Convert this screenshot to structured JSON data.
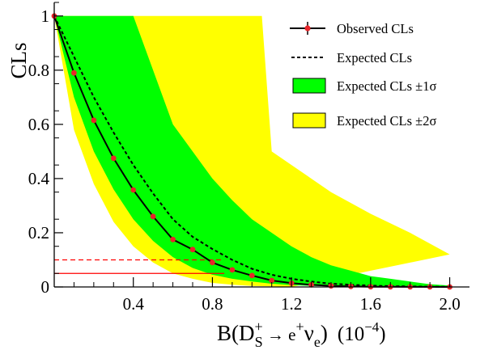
{
  "chart_data": {
    "type": "line",
    "ylabel": "CLs",
    "xlabel": {
      "B": "B(D",
      "sup": "+",
      "sub": "S",
      "arrow": " → e",
      "esup": "+",
      "nu": "ν",
      "nusub": "e",
      "close": ")",
      "unit": "(10",
      "unitexp": "−4",
      "unitclose": ")"
    },
    "xlim": [
      0.0,
      2.1
    ],
    "ylim": [
      0.0,
      1.05
    ],
    "xticks": [
      {
        "v": 0.4,
        "label": "0.4"
      },
      {
        "v": 0.8,
        "label": "0.8"
      },
      {
        "v": 1.2,
        "label": "1.2"
      },
      {
        "v": 1.6,
        "label": "1.6"
      },
      {
        "v": 2.0,
        "label": "2.0"
      }
    ],
    "yticks": [
      {
        "v": 0.0,
        "label": "0"
      },
      {
        "v": 0.2,
        "label": "0.2"
      },
      {
        "v": 0.4,
        "label": "0.4"
      },
      {
        "v": 0.6,
        "label": "0.6"
      },
      {
        "v": 0.8,
        "label": "0.8"
      },
      {
        "v": 1.0,
        "label": "1"
      }
    ],
    "observed": {
      "name": "Observed CLs",
      "color": "#000000",
      "marker_color": "#e8252a",
      "x": [
        0.0,
        0.1,
        0.2,
        0.3,
        0.4,
        0.5,
        0.6,
        0.7,
        0.8,
        0.9,
        1.0,
        1.1,
        1.2,
        1.3,
        1.4,
        1.5,
        1.6,
        1.7,
        1.8,
        1.9,
        2.0
      ],
      "y": [
        1.0,
        0.79,
        0.615,
        0.475,
        0.358,
        0.26,
        0.175,
        0.138,
        0.09,
        0.063,
        0.042,
        0.024,
        0.014,
        0.008,
        0.004,
        0.002,
        0.001,
        0.0005,
        0.0003,
        0.0002,
        0.0001
      ]
    },
    "expected": {
      "name": "Expected CLs",
      "x": [
        0.0,
        0.1,
        0.2,
        0.3,
        0.4,
        0.5,
        0.6,
        0.7,
        0.8,
        0.9,
        1.0,
        1.1,
        1.2,
        1.3,
        1.4,
        1.5,
        1.6,
        1.7,
        1.8,
        1.9,
        2.0
      ],
      "y": [
        1.0,
        0.85,
        0.7,
        0.57,
        0.45,
        0.345,
        0.25,
        0.185,
        0.14,
        0.1,
        0.067,
        0.045,
        0.03,
        0.02,
        0.012,
        0.008,
        0.005,
        0.003,
        0.002,
        0.001,
        0.0005
      ]
    },
    "band_1sigma": {
      "name": "Expected CLs ±1σ",
      "color": "#00ff00",
      "x": [
        0.0,
        0.1,
        0.2,
        0.3,
        0.4,
        0.5,
        0.6,
        0.7,
        0.8,
        0.9,
        1.0,
        1.1,
        1.2,
        1.3,
        1.4,
        1.5,
        1.6,
        1.7,
        1.8,
        1.9,
        2.0
      ],
      "upper": [
        1.0,
        1.0,
        1.0,
        1.0,
        1.0,
        0.8,
        0.6,
        0.5,
        0.4,
        0.32,
        0.25,
        0.2,
        0.15,
        0.11,
        0.08,
        0.06,
        0.04,
        0.03,
        0.02,
        0.01,
        0.005
      ],
      "lower": [
        1.0,
        0.7,
        0.5,
        0.36,
        0.25,
        0.17,
        0.11,
        0.07,
        0.045,
        0.03,
        0.02,
        0.012,
        0.007,
        0.004,
        0.002,
        0.001,
        0.0005,
        0.0003,
        0.0002,
        0.0001,
        0.0
      ]
    },
    "band_2sigma": {
      "name": "Expected CLs ±2σ",
      "color": "#ffff00",
      "x_upper": [
        0.0,
        0.45,
        0.8,
        1.0,
        1.05,
        1.1,
        1.2,
        1.4,
        1.6,
        1.8,
        2.0
      ],
      "upper": [
        1.0,
        1.0,
        1.0,
        1.0,
        1.0,
        0.5,
        0.45,
        0.35,
        0.27,
        0.2,
        0.12
      ],
      "x_lower": [
        0.0,
        0.1,
        0.2,
        0.3,
        0.4,
        0.5,
        0.6,
        0.7,
        0.8,
        0.9,
        1.0,
        1.1,
        1.2
      ],
      "lower": [
        1.0,
        0.58,
        0.38,
        0.24,
        0.15,
        0.09,
        0.05,
        0.03,
        0.015,
        0.008,
        0.004,
        0.002,
        0.0
      ]
    },
    "hlines": [
      {
        "y": 0.1,
        "color": "#ff0000",
        "style": "dashed",
        "x_end": 0.86
      },
      {
        "y": 0.05,
        "color": "#ff0000",
        "style": "solid",
        "x_end": 0.86
      }
    ],
    "legend": {
      "placement": "top-right",
      "entries": [
        {
          "label": "Observed CLs",
          "kind": "line-marker"
        },
        {
          "label": "Expected CLs",
          "kind": "dashed-line"
        },
        {
          "label": "Expected CLs ±1σ",
          "kind": "box",
          "color": "#00ff00"
        },
        {
          "label": "Expected CLs ±2σ",
          "kind": "box",
          "color": "#ffff00"
        }
      ]
    }
  }
}
